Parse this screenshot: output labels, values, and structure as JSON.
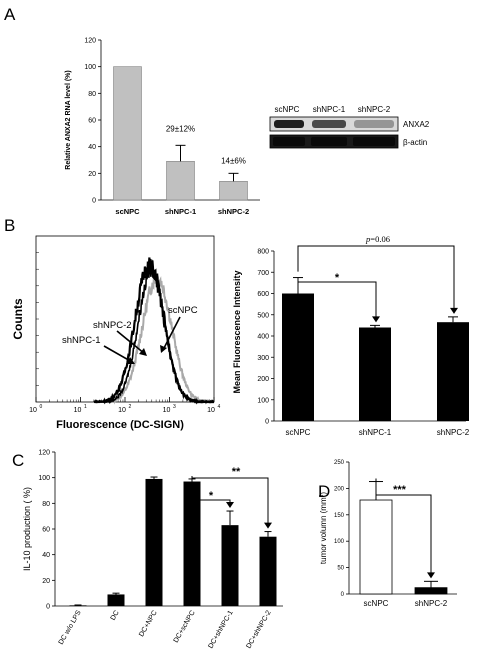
{
  "panels": {
    "A": {
      "letter": "A",
      "bar_chart": {
        "type": "bar",
        "ylabel": "Relative ANXA2 RNA level (%)",
        "ylim": [
          0,
          120
        ],
        "yticks": [
          "0",
          "20",
          "40",
          "60",
          "80",
          "100",
          "120"
        ],
        "categories": [
          "scNPC",
          "shNPC-1",
          "shNPC-2"
        ],
        "values": [
          100,
          29,
          14
        ],
        "errors": [
          0,
          12,
          6
        ],
        "annotations": [
          "",
          "29±12%",
          "14±6%"
        ],
        "bar_color": "#c0c0c0"
      },
      "western_blot": {
        "lanes": [
          "scNPC",
          "shNPC-1",
          "shNPC-2"
        ],
        "rows": [
          "ANXA2",
          "β-actin"
        ],
        "anxa2_intensity": [
          1.0,
          0.75,
          0.3
        ],
        "actin_intensity": [
          1.0,
          1.0,
          1.0
        ]
      }
    },
    "B": {
      "letter": "B",
      "flow": {
        "type": "line",
        "xlabel": "Fluorescence (DC-SIGN)",
        "ylabel": "Counts",
        "xscale": "log",
        "xticks": [
          "10",
          "10",
          "10",
          "10",
          "10"
        ],
        "xtick_exponents": [
          "0",
          "1",
          "2",
          "3",
          "4"
        ],
        "series": [
          {
            "name": "scNPC",
            "color": "#a9a9a9",
            "peak_log": 2.72,
            "peak": 75,
            "width": 0.33
          },
          {
            "name": "shNPC-1",
            "color": "#000000",
            "peak_log": 2.55,
            "peak": 83,
            "width": 0.32
          },
          {
            "name": "shNPC-2",
            "color": "#000000",
            "peak_log": 2.6,
            "peak": 80,
            "width": 0.3
          }
        ],
        "labels": [
          "shNPC-2",
          "scNPC",
          "shNPC-1"
        ]
      },
      "mfi": {
        "type": "bar",
        "ylabel": "Mean Fluorescence Intensity",
        "ylim": [
          0,
          800
        ],
        "yticks": [
          "0",
          "100",
          "200",
          "300",
          "400",
          "500",
          "600",
          "700",
          "800"
        ],
        "categories": [
          "scNPC",
          "shNPC-1",
          "shNPC-2"
        ],
        "values": [
          600,
          440,
          465
        ],
        "errors": [
          75,
          10,
          25
        ],
        "sig_star": "*",
        "pvalue_italic": "p",
        "pvalue_rest": "=0.06"
      }
    },
    "C": {
      "letter": "C",
      "chart": {
        "type": "bar",
        "ylabel": "IL-10 production ( %)",
        "ylim": [
          0,
          120
        ],
        "yticks": [
          "0",
          "20",
          "40",
          "60",
          "80",
          "100",
          "120"
        ],
        "categories": [
          "DC w/o LPS",
          "DC",
          "DC+NPC",
          "DC+scNPC",
          "DC+shNPC-1",
          "DC+shNPC-2"
        ],
        "values": [
          0.5,
          9,
          99,
          97,
          63,
          54
        ],
        "errors": [
          0.3,
          1,
          1.5,
          2,
          11,
          4
        ],
        "sig": [
          "*",
          "**"
        ]
      }
    },
    "D": {
      "letter": "D",
      "chart": {
        "type": "bar",
        "ylabel_pre": "tumor volumn (mm",
        "ylabel_sup": "3",
        "ylabel_post": ")",
        "ylim": [
          0,
          250
        ],
        "yticks": [
          "0",
          "50",
          "100",
          "150",
          "200",
          "250"
        ],
        "categories": [
          "scNPC",
          "shNPC-2"
        ],
        "values": [
          178,
          12
        ],
        "errors": [
          35,
          12
        ],
        "sig": "***"
      }
    }
  }
}
